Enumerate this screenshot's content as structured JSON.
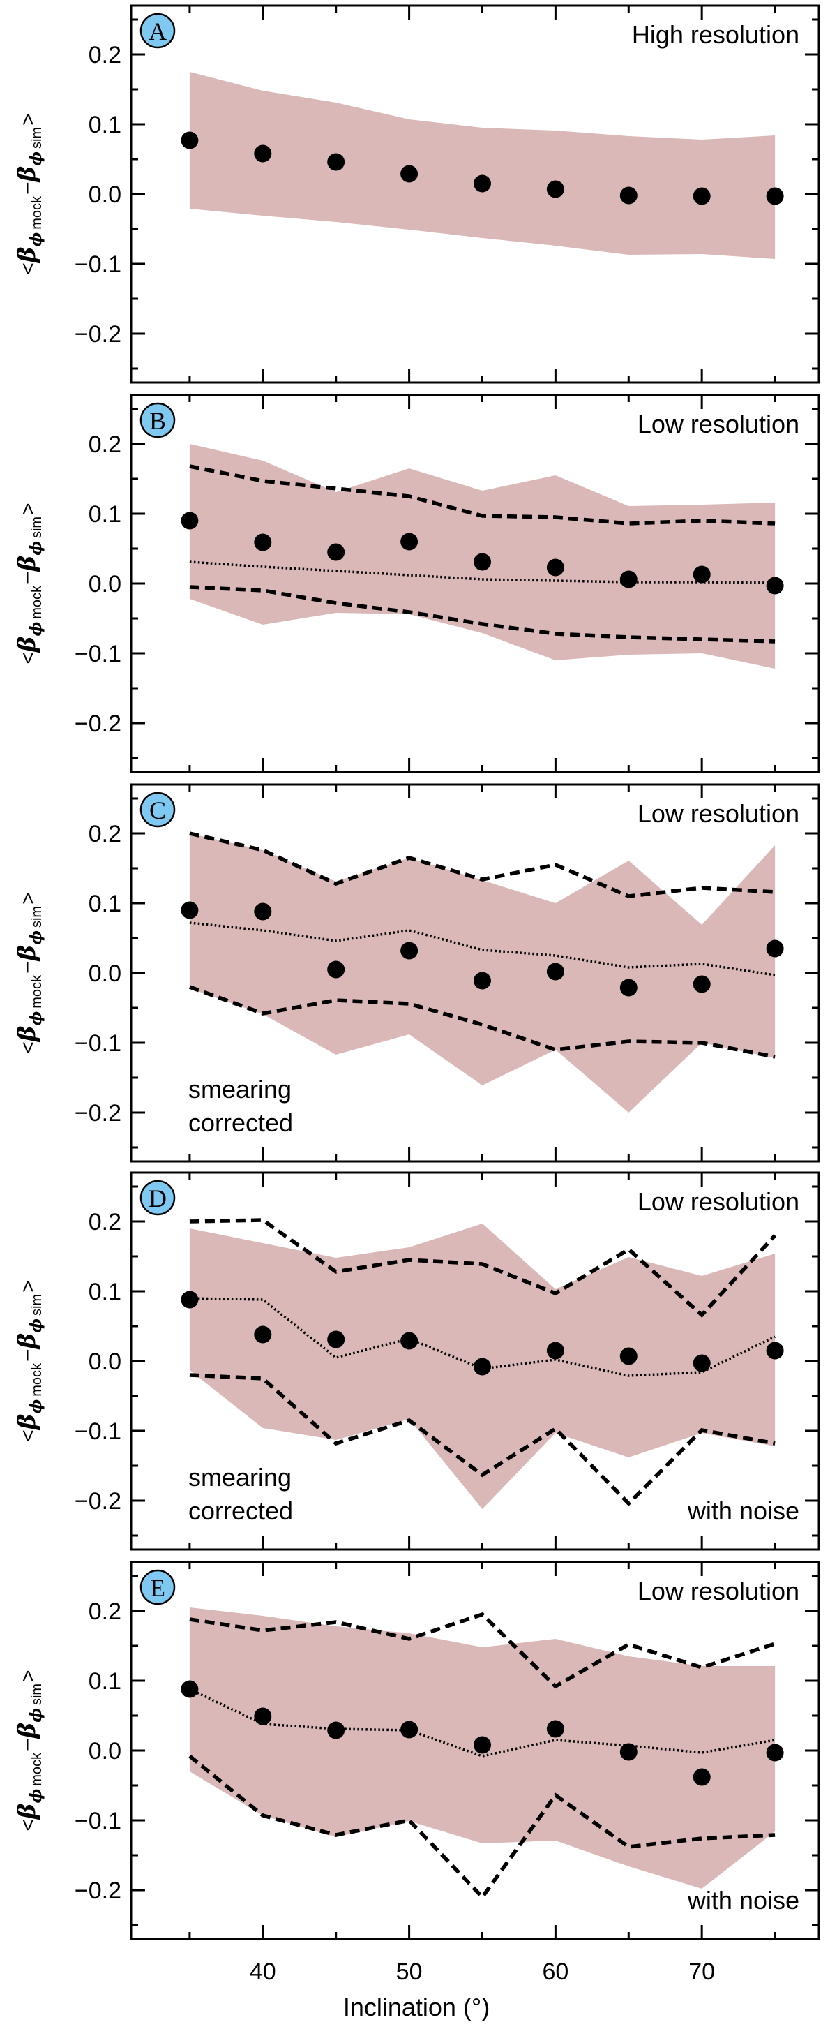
{
  "figure": {
    "xlabel": "Inclination (°)",
    "xlim": [
      31,
      78
    ],
    "ylim": [
      -0.27,
      0.27
    ],
    "xticks": [
      40,
      50,
      60,
      70
    ],
    "xtick_labels": [
      "40",
      "50",
      "60",
      "70"
    ],
    "yticks": [
      -0.2,
      -0.1,
      0.0,
      0.1,
      0.2
    ],
    "ytick_labels": [
      "−0.2",
      "−0.1",
      "0.0",
      "0.1",
      "0.2"
    ],
    "ylabel_parts": {
      "open": "<",
      "beta": "β",
      "phi": "ϕ",
      "mock": "mock",
      "sim": "sim",
      "minus": "−",
      "close": ">"
    },
    "colors": {
      "band": "#dab8b8",
      "marker": "#000000",
      "badge_fill": "#7ec8f2"
    }
  },
  "chart_data": [
    {
      "type": "scatter",
      "panel": "A",
      "label": "A",
      "title": "High resolution",
      "x": [
        35,
        40,
        45,
        50,
        55,
        60,
        65,
        70,
        75
      ],
      "mean": [
        0.077,
        0.058,
        0.046,
        0.029,
        0.015,
        0.007,
        -0.002,
        -0.003,
        -0.003
      ],
      "band_upper": [
        0.175,
        0.148,
        0.131,
        0.107,
        0.095,
        0.091,
        0.083,
        0.078,
        0.084
      ],
      "band_lower": [
        -0.021,
        -0.031,
        -0.04,
        -0.051,
        -0.063,
        -0.074,
        -0.087,
        -0.086,
        -0.093
      ],
      "annotations": []
    },
    {
      "type": "scatter",
      "panel": "B",
      "label": "B",
      "title": "Low resolution",
      "x": [
        35,
        40,
        45,
        50,
        55,
        60,
        65,
        70,
        75
      ],
      "mean": [
        0.09,
        0.059,
        0.045,
        0.06,
        0.031,
        0.023,
        0.006,
        0.013,
        -0.003
      ],
      "band_upper": [
        0.2,
        0.176,
        0.131,
        0.165,
        0.133,
        0.155,
        0.111,
        0.113,
        0.116
      ],
      "band_lower": [
        -0.022,
        -0.059,
        -0.042,
        -0.044,
        -0.071,
        -0.11,
        -0.102,
        -0.1,
        -0.122
      ],
      "dotted": [
        0.031,
        0.024,
        0.018,
        0.012,
        0.006,
        0.004,
        0.002,
        0.002,
        0.001
      ],
      "dashed_upper": [
        0.168,
        0.147,
        0.136,
        0.125,
        0.097,
        0.095,
        0.086,
        0.09,
        0.086
      ],
      "dashed_lower": [
        -0.005,
        -0.01,
        -0.028,
        -0.041,
        -0.058,
        -0.072,
        -0.077,
        -0.08,
        -0.083
      ],
      "annotations": []
    },
    {
      "type": "scatter",
      "panel": "C",
      "label": "C",
      "title": "Low resolution",
      "x": [
        35,
        40,
        45,
        50,
        55,
        60,
        65,
        70,
        75
      ],
      "mean": [
        0.09,
        0.088,
        0.005,
        0.032,
        -0.011,
        0.002,
        -0.021,
        -0.016,
        0.035
      ],
      "band_upper": [
        0.2,
        0.176,
        0.131,
        0.165,
        0.133,
        0.1,
        0.161,
        0.069,
        0.183
      ],
      "band_lower": [
        -0.022,
        -0.059,
        -0.117,
        -0.088,
        -0.161,
        -0.11,
        -0.2,
        -0.1,
        -0.122
      ],
      "dotted": [
        0.072,
        0.061,
        0.046,
        0.061,
        0.033,
        0.025,
        0.008,
        0.013,
        -0.003
      ],
      "dashed_upper": [
        0.2,
        0.176,
        0.128,
        0.165,
        0.134,
        0.155,
        0.11,
        0.122,
        0.116
      ],
      "dashed_lower": [
        -0.02,
        -0.058,
        -0.039,
        -0.044,
        -0.074,
        -0.11,
        -0.098,
        -0.1,
        -0.12
      ],
      "annotations": [
        {
          "text": "smearing",
          "position": "bottom-left-upper"
        },
        {
          "text": "corrected",
          "position": "bottom-left-lower"
        }
      ]
    },
    {
      "type": "scatter",
      "panel": "D",
      "label": "D",
      "title": "Low resolution",
      "x": [
        35,
        40,
        45,
        50,
        55,
        60,
        65,
        70,
        75
      ],
      "mean": [
        0.088,
        0.038,
        0.031,
        0.029,
        -0.008,
        0.015,
        0.007,
        -0.003,
        0.015
      ],
      "band_upper": [
        0.19,
        0.169,
        0.148,
        0.163,
        0.197,
        0.103,
        0.149,
        0.122,
        0.154
      ],
      "band_lower": [
        -0.013,
        -0.096,
        -0.113,
        -0.083,
        -0.212,
        -0.103,
        -0.138,
        -0.103,
        -0.122
      ],
      "dotted": [
        0.09,
        0.088,
        0.005,
        0.032,
        -0.011,
        0.002,
        -0.021,
        -0.016,
        0.035
      ],
      "dashed_upper": [
        0.2,
        0.202,
        0.128,
        0.145,
        0.139,
        0.097,
        0.16,
        0.066,
        0.18
      ],
      "dashed_lower": [
        -0.02,
        -0.025,
        -0.118,
        -0.085,
        -0.163,
        -0.097,
        -0.204,
        -0.099,
        -0.118
      ],
      "annotations": [
        {
          "text": "smearing",
          "position": "bottom-left-upper"
        },
        {
          "text": "corrected",
          "position": "bottom-left-lower"
        },
        {
          "text": "with noise",
          "position": "bottom-right"
        }
      ]
    },
    {
      "type": "scatter",
      "panel": "E",
      "label": "E",
      "title": "Low resolution",
      "x": [
        35,
        40,
        45,
        50,
        55,
        60,
        65,
        70,
        75
      ],
      "mean": [
        0.088,
        0.049,
        0.029,
        0.03,
        0.008,
        0.031,
        -0.002,
        -0.038,
        -0.003
      ],
      "band_upper": [
        0.205,
        0.193,
        0.178,
        0.168,
        0.148,
        0.16,
        0.135,
        0.121,
        0.121
      ],
      "band_lower": [
        -0.03,
        -0.093,
        -0.124,
        -0.101,
        -0.133,
        -0.129,
        -0.166,
        -0.198,
        -0.116
      ],
      "dotted": [
        0.088,
        0.038,
        0.031,
        0.029,
        -0.008,
        0.015,
        0.007,
        -0.003,
        0.015
      ],
      "dashed_upper": [
        0.188,
        0.172,
        0.184,
        0.16,
        0.195,
        0.092,
        0.152,
        0.119,
        0.153
      ],
      "dashed_lower": [
        -0.008,
        -0.093,
        -0.121,
        -0.1,
        -0.21,
        -0.064,
        -0.138,
        -0.126,
        -0.121
      ],
      "annotations": [
        {
          "text": "with noise",
          "position": "bottom-right"
        }
      ]
    }
  ]
}
